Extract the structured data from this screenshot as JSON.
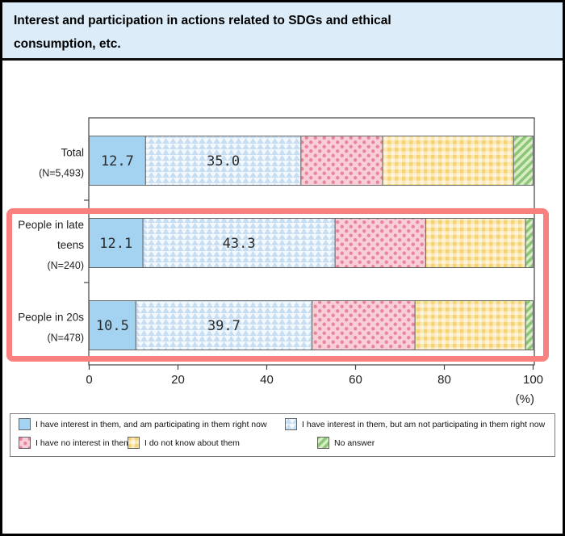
{
  "title": "Interest and participation in actions related to SDGs and ethical consumption, etc.",
  "chart_data": {
    "type": "bar",
    "variant": "horizontal-stacked",
    "unit": "%",
    "xlim": [
      0,
      100
    ],
    "x_ticks": [
      0,
      20,
      40,
      60,
      80,
      100
    ],
    "x_axis_unit_label": "(%)",
    "grid": false,
    "legend_position": "bottom",
    "categories": [
      {
        "label_lines": [
          "Total",
          "(N=5,493)"
        ]
      },
      {
        "label_lines": [
          "People in late",
          "teens",
          "(N=240)"
        ]
      },
      {
        "label_lines": [
          "People in 20s",
          "(N=478)"
        ]
      }
    ],
    "series": [
      {
        "name": "I have interest in them, and am participating in them right now",
        "values": [
          12.7,
          12.1,
          10.5
        ],
        "show_labels": true,
        "style": {
          "type": "solid",
          "bg": "#a3d3f1",
          "fg": "#a3d3f1"
        }
      },
      {
        "name": "I have interest in them, but am not participating in them right now",
        "values": [
          35.0,
          43.3,
          39.7
        ],
        "show_labels": true,
        "style": {
          "type": "triangles",
          "bg": "#f3f8fd",
          "fg": "#c6ddf2"
        }
      },
      {
        "name": "I have no interest in them",
        "values": [
          18.4,
          20.4,
          23.2
        ],
        "show_labels": false,
        "style": {
          "type": "dots",
          "bg": "#f8cfd8",
          "fg": "#e8849b"
        }
      },
      {
        "name": "I do not know about them",
        "values": [
          29.5,
          22.5,
          24.9
        ],
        "show_labels": false,
        "style": {
          "type": "gingham",
          "bg": "#f5d36f",
          "fg": "#ffffff"
        }
      },
      {
        "name": "No answer",
        "values": [
          4.4,
          1.7,
          1.7
        ],
        "show_labels": false,
        "style": {
          "type": "stripes",
          "bg": "#d8edc4",
          "fg": "#8cc577"
        }
      }
    ],
    "highlight": {
      "rows": [
        1,
        2
      ],
      "color": "#f8807f"
    }
  },
  "colors": {
    "title_bg": "#dcedf9",
    "frame_border": "#000000",
    "segment_border": "#666666",
    "plot_border": "#444444",
    "value_text": "#2b2b2b",
    "highlight": "#f8807f"
  }
}
